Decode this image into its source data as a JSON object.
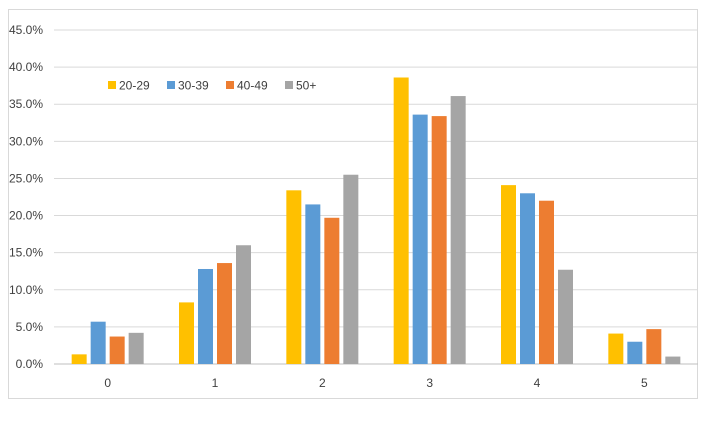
{
  "chart_data": {
    "type": "bar",
    "title": "",
    "xlabel": "",
    "ylabel": "",
    "categories": [
      "0",
      "1",
      "2",
      "3",
      "4",
      "5"
    ],
    "series": [
      {
        "name": "20-29",
        "color": "#FFC000",
        "values": [
          1.3,
          8.3,
          23.4,
          38.6,
          24.1,
          4.1
        ]
      },
      {
        "name": "30-39",
        "color": "#5B9BD5",
        "values": [
          5.7,
          12.8,
          21.5,
          33.6,
          23.0,
          3.0
        ]
      },
      {
        "name": "40-49",
        "color": "#ED7D31",
        "values": [
          3.7,
          13.6,
          19.7,
          33.4,
          22.0,
          4.7
        ]
      },
      {
        "name": "50+",
        "color": "#A5A5A5",
        "values": [
          4.2,
          16.0,
          25.5,
          36.1,
          12.7,
          1.0
        ]
      }
    ],
    "ylim": [
      0,
      45
    ],
    "yticks": [
      "0.0%",
      "5.0%",
      "10.0%",
      "15.0%",
      "20.0%",
      "25.0%",
      "30.0%",
      "35.0%",
      "40.0%",
      "45.0%"
    ],
    "grid": true,
    "legend_position": "top-left"
  }
}
